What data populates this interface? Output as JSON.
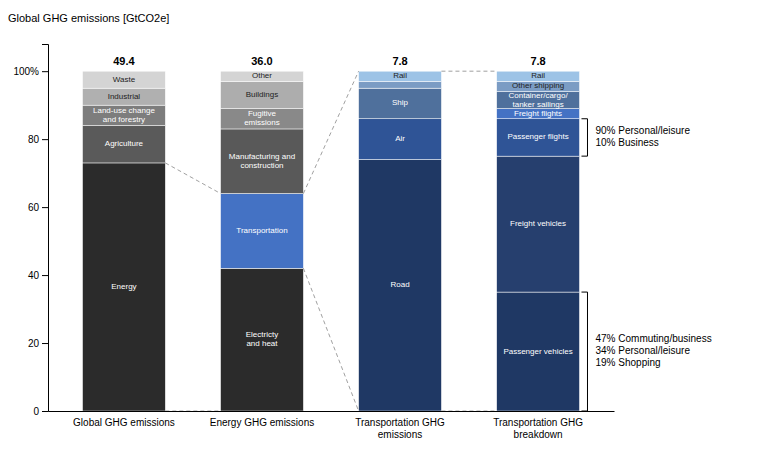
{
  "chart_data": {
    "type": "bar",
    "stacked": true,
    "ylabel": "Global GHG emissions [GtCO2e]",
    "categories": [
      "Global GHG emissions",
      "Energy GHG emissions",
      "Transportation GHG emissions",
      "Transportation GHG breakdown"
    ],
    "stacks": [
      [
        {
          "name": "Energy",
          "value": 73,
          "color": "#2b2b2b"
        },
        {
          "name": "Agriculture",
          "value": 11,
          "color": "#5a5a5a"
        },
        {
          "name": "Land-use change\nand forestry",
          "value": 6,
          "color": "#7d7d7d"
        },
        {
          "name": "Industrial",
          "value": 5,
          "color": "#b0b0b0"
        },
        {
          "name": "Waste",
          "value": 5,
          "color": "#d4d4d4"
        }
      ],
      [
        {
          "name": "Electricty\nand heat",
          "value": 42,
          "color": "#2b2b2b"
        },
        {
          "name": "Transportation",
          "value": 22,
          "color": "#4472c4"
        },
        {
          "name": "Manufacturing and\nconstruction",
          "value": 19,
          "color": "#595959"
        },
        {
          "name": "Fugitive\nemissions",
          "value": 6,
          "color": "#898989"
        },
        {
          "name": "Buildings",
          "value": 8,
          "color": "#adadad"
        },
        {
          "name": "Other",
          "value": 3,
          "color": "#d4d4d4"
        }
      ],
      [
        {
          "name": "Road",
          "value": 74,
          "color": "#1f3864"
        },
        {
          "name": "Air",
          "value": 12,
          "color": "#2f5496"
        },
        {
          "name": "Ship",
          "value": 9,
          "color": "#4f709c"
        },
        {
          "value": 2,
          "color": "#7b9cc4"
        },
        {
          "name": "Rail",
          "value": 3,
          "color": "#9dc3e6"
        }
      ],
      [
        {
          "name": "Passenger vehicles",
          "value": 35,
          "color": "#1f3864"
        },
        {
          "name": "Freight vehicles",
          "value": 40,
          "color": "#263f6e"
        },
        {
          "name": "Passenger flights",
          "value": 11,
          "color": "#2f5496"
        },
        {
          "name": "Freight flights",
          "value": 3,
          "color": "#4472c4"
        },
        {
          "name": "Container/cargo/\ntanker sailings",
          "value": 5,
          "color": "#4f709c"
        },
        {
          "name": "Other shipping",
          "value": 3,
          "color": "#7b9cc4"
        },
        {
          "name": "Rail",
          "value": 3,
          "color": "#9dc3e6"
        }
      ]
    ],
    "totals": [
      "49.4",
      "36.0",
      "7.8",
      "7.8"
    ],
    "connectors": {
      "color": "#888888",
      "lines": [
        {
          "y_left": [
            73,
            0
          ],
          "y_right": [
            64,
            0
          ]
        },
        {
          "y_left": [
            64,
            42
          ],
          "y_right": [
            100,
            0
          ]
        },
        {
          "y_left": [
            100,
            0
          ],
          "y_right": [
            100,
            0
          ]
        }
      ]
    },
    "brackets": [
      {
        "top": 86,
        "bottom": 75,
        "labels": [
          "90% Personal/leisure",
          "10% Business"
        ]
      },
      {
        "top": 35,
        "bottom": 0,
        "labels": [
          "47% Commuting/business",
          "34% Personal/leisure",
          "19% Shopping"
        ]
      }
    ],
    "ylim": [
      0,
      108
    ],
    "yticks": [
      0,
      20,
      40,
      60,
      80,
      {
        "value": 100,
        "label": "100%"
      }
    ]
  }
}
